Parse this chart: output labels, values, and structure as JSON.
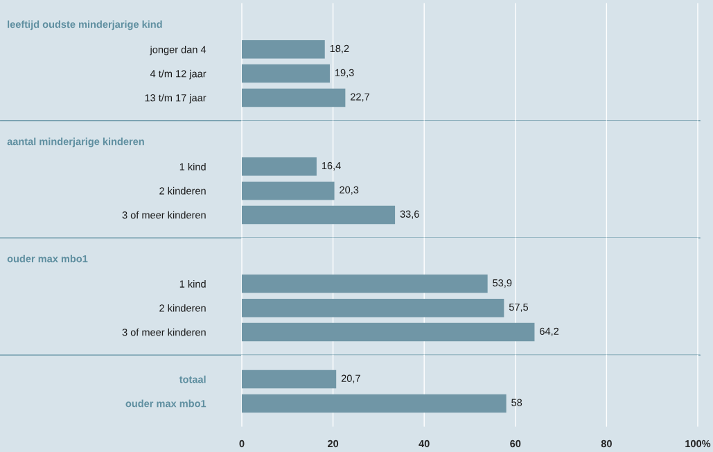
{
  "chart_data": [
    {
      "type": "bar",
      "orientation": "horizontal",
      "title": "leeftijd oudste minderjarige kind",
      "categories": [
        "jonger dan 4",
        "4 t/m 12 jaar",
        "13 t/m 17 jaar"
      ],
      "values": [
        18.2,
        19.3,
        22.7
      ],
      "value_labels": [
        "18,2",
        "19,3",
        "22,7"
      ],
      "color": "#7096a6",
      "xlim": [
        0,
        100
      ],
      "xticks": [
        0,
        20,
        40,
        60,
        80,
        100
      ],
      "grid": "x",
      "tick_labels": "y"
    },
    {
      "type": "bar",
      "orientation": "horizontal",
      "title": "aantal minderjarige kinderen",
      "categories": [
        "1 kind",
        "2 kinderen",
        "3 of meer kinderen"
      ],
      "values": [
        16.4,
        20.3,
        33.6
      ],
      "value_labels": [
        "16,4",
        "20,3",
        "33,6"
      ],
      "color": "#7096a6",
      "xlim": [
        0,
        100
      ],
      "xticks": [
        0,
        20,
        40,
        60,
        80,
        100
      ],
      "grid": "x",
      "tick_labels": "y"
    },
    {
      "type": "bar",
      "orientation": "horizontal",
      "title": "ouder max mbo1",
      "categories": [
        "1 kind",
        "2 kinderen",
        "3 of meer kinderen"
      ],
      "values": [
        53.9,
        57.5,
        64.2
      ],
      "value_labels": [
        "53,9",
        "57,5",
        "64,2"
      ],
      "color": "#7096a6",
      "xlim": [
        0,
        100
      ],
      "xticks": [
        0,
        20,
        40,
        60,
        80,
        100
      ],
      "grid": "x",
      "tick_labels": "y"
    },
    {
      "type": "bar",
      "orientation": "horizontal",
      "categories": [
        "totaal",
        "ouder max mbo1"
      ],
      "values": [
        20.7,
        58
      ],
      "value_labels": [
        "20,7",
        "58"
      ],
      "color": "#7096a6",
      "xlim": [
        0,
        100
      ],
      "xticks": [
        0,
        20,
        40,
        60,
        80,
        {
          "value": 100,
          "label": "100%"
        }
      ],
      "grid": "x"
    }
  ]
}
